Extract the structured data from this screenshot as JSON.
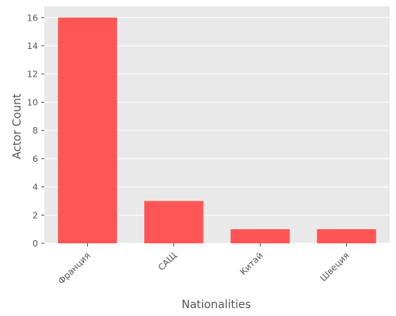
{
  "chart_data": {
    "type": "bar",
    "categories": [
      "Франция",
      "САЩ",
      "Китай",
      "Швеция"
    ],
    "values": [
      16,
      3,
      1,
      1
    ],
    "xlabel": "Nationalities",
    "ylabel": "Actor Count",
    "ylim": [
      0,
      16.8
    ],
    "yticks": [
      0,
      2,
      4,
      6,
      8,
      10,
      12,
      14,
      16
    ],
    "grid": true,
    "colors": {
      "bar": "#ff5555",
      "background": "#e9e9e9",
      "grid": "#ffffff",
      "text": "#555555"
    }
  }
}
